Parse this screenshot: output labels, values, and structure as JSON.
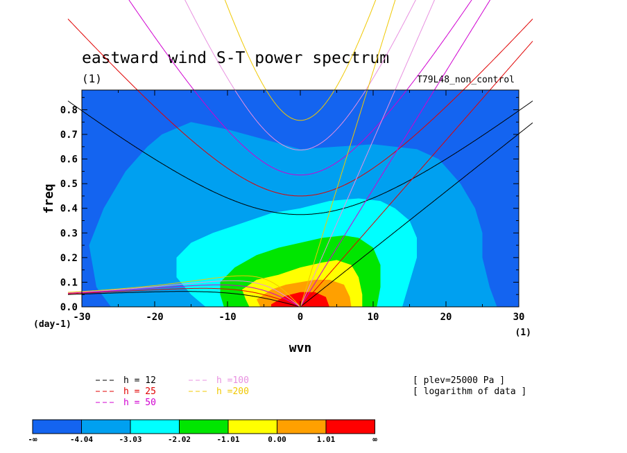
{
  "chart_data": {
    "type": "heatmap",
    "title": "eastward wind S-T power spectrum",
    "subtitle_left": "(1)",
    "subtitle_right": "T79L48_non_control",
    "xlabel": "wvn",
    "ylabel": "freq",
    "x_unit": "(1)",
    "y_unit": "(day-1)",
    "xlim": [
      -30,
      30
    ],
    "ylim": [
      0,
      0.88
    ],
    "xticks": [
      -30,
      -20,
      -10,
      0,
      10,
      20,
      30
    ],
    "yticks": [
      "0.0",
      "0.1",
      "0.2",
      "0.3",
      "0.4",
      "0.5",
      "0.6",
      "0.7",
      "0.8"
    ],
    "notes": [
      "[ plev=25000 Pa ]",
      "[ logarithm of data ]"
    ],
    "colorbar": {
      "colors": [
        "#1464f0",
        "#00a0f0",
        "#00ffff",
        "#00e600",
        "#ffff00",
        "#ffa000",
        "#ff0000"
      ],
      "tick_labels": [
        "-∞",
        "-4.04",
        "-3.03",
        "-2.02",
        "-1.01",
        "0.00",
        "1.01",
        "∞"
      ]
    },
    "level_regions": [
      {
        "level": 1,
        "points": [
          [
            -19,
            0.7
          ],
          [
            -15,
            0.75
          ],
          [
            -10,
            0.72
          ],
          [
            -5,
            0.68
          ],
          [
            0,
            0.64
          ],
          [
            5,
            0.65
          ],
          [
            10,
            0.66
          ],
          [
            16,
            0.64
          ],
          [
            19,
            0.6
          ],
          [
            22,
            0.5
          ],
          [
            24,
            0.4
          ],
          [
            25,
            0.3
          ],
          [
            25,
            0.2
          ],
          [
            26,
            0.08
          ],
          [
            27,
            0.0
          ],
          [
            -26,
            0.0
          ],
          [
            -28,
            0.08
          ],
          [
            -29,
            0.25
          ],
          [
            -27,
            0.4
          ],
          [
            -24,
            0.55
          ],
          [
            -21,
            0.65
          ]
        ]
      },
      {
        "level": 2,
        "points": [
          [
            -17,
            0.2
          ],
          [
            -15,
            0.26
          ],
          [
            -12,
            0.3
          ],
          [
            -8,
            0.34
          ],
          [
            -4,
            0.38
          ],
          [
            0,
            0.4
          ],
          [
            4,
            0.43
          ],
          [
            8,
            0.44
          ],
          [
            11,
            0.43
          ],
          [
            13,
            0.4
          ],
          [
            15,
            0.35
          ],
          [
            16,
            0.28
          ],
          [
            16,
            0.2
          ],
          [
            15,
            0.1
          ],
          [
            14,
            0.0
          ],
          [
            -13,
            0.0
          ],
          [
            -15,
            0.05
          ],
          [
            -17,
            0.12
          ]
        ]
      },
      {
        "level": 3,
        "points": [
          [
            -11,
            0.1
          ],
          [
            -9,
            0.16
          ],
          [
            -6,
            0.21
          ],
          [
            -3,
            0.24
          ],
          [
            0,
            0.26
          ],
          [
            3,
            0.28
          ],
          [
            6,
            0.29
          ],
          [
            8,
            0.28
          ],
          [
            10,
            0.24
          ],
          [
            11,
            0.17
          ],
          [
            11,
            0.08
          ],
          [
            10.5,
            0.0
          ],
          [
            -10.5,
            0.0
          ],
          [
            -11,
            0.05
          ]
        ]
      },
      {
        "level": 4,
        "points": [
          [
            -8,
            0.07
          ],
          [
            -6,
            0.11
          ],
          [
            -3,
            0.13
          ],
          [
            0,
            0.16
          ],
          [
            3,
            0.18
          ],
          [
            5,
            0.19
          ],
          [
            7,
            0.17
          ],
          [
            8,
            0.12
          ],
          [
            8.5,
            0.05
          ],
          [
            8.5,
            0.0
          ],
          [
            -7,
            0.0
          ],
          [
            -7.5,
            0.03
          ]
        ]
      },
      {
        "level": 5,
        "points": [
          [
            -6,
            0.03
          ],
          [
            -4,
            0.07
          ],
          [
            -2,
            0.09
          ],
          [
            0,
            0.1
          ],
          [
            2,
            0.11
          ],
          [
            4,
            0.11
          ],
          [
            6,
            0.09
          ],
          [
            6.8,
            0.04
          ],
          [
            7,
            0.0
          ],
          [
            -5.5,
            0.0
          ]
        ]
      },
      {
        "level": 6,
        "points": [
          [
            -4,
            0.01
          ],
          [
            -2,
            0.045
          ],
          [
            0,
            0.06
          ],
          [
            2,
            0.06
          ],
          [
            3.5,
            0.04
          ],
          [
            4,
            0.0
          ],
          [
            -4,
            0.0
          ]
        ]
      }
    ],
    "dispersion_curves": {
      "equivalent_depths": [
        12,
        25,
        50,
        100,
        200
      ],
      "colors": [
        "#000000",
        "#e00000",
        "#d000d0",
        "#e890e0",
        "#f0c800"
      ],
      "legend": [
        "h = 12",
        "h = 25",
        "h = 50",
        "h =100",
        "h =200"
      ]
    }
  }
}
